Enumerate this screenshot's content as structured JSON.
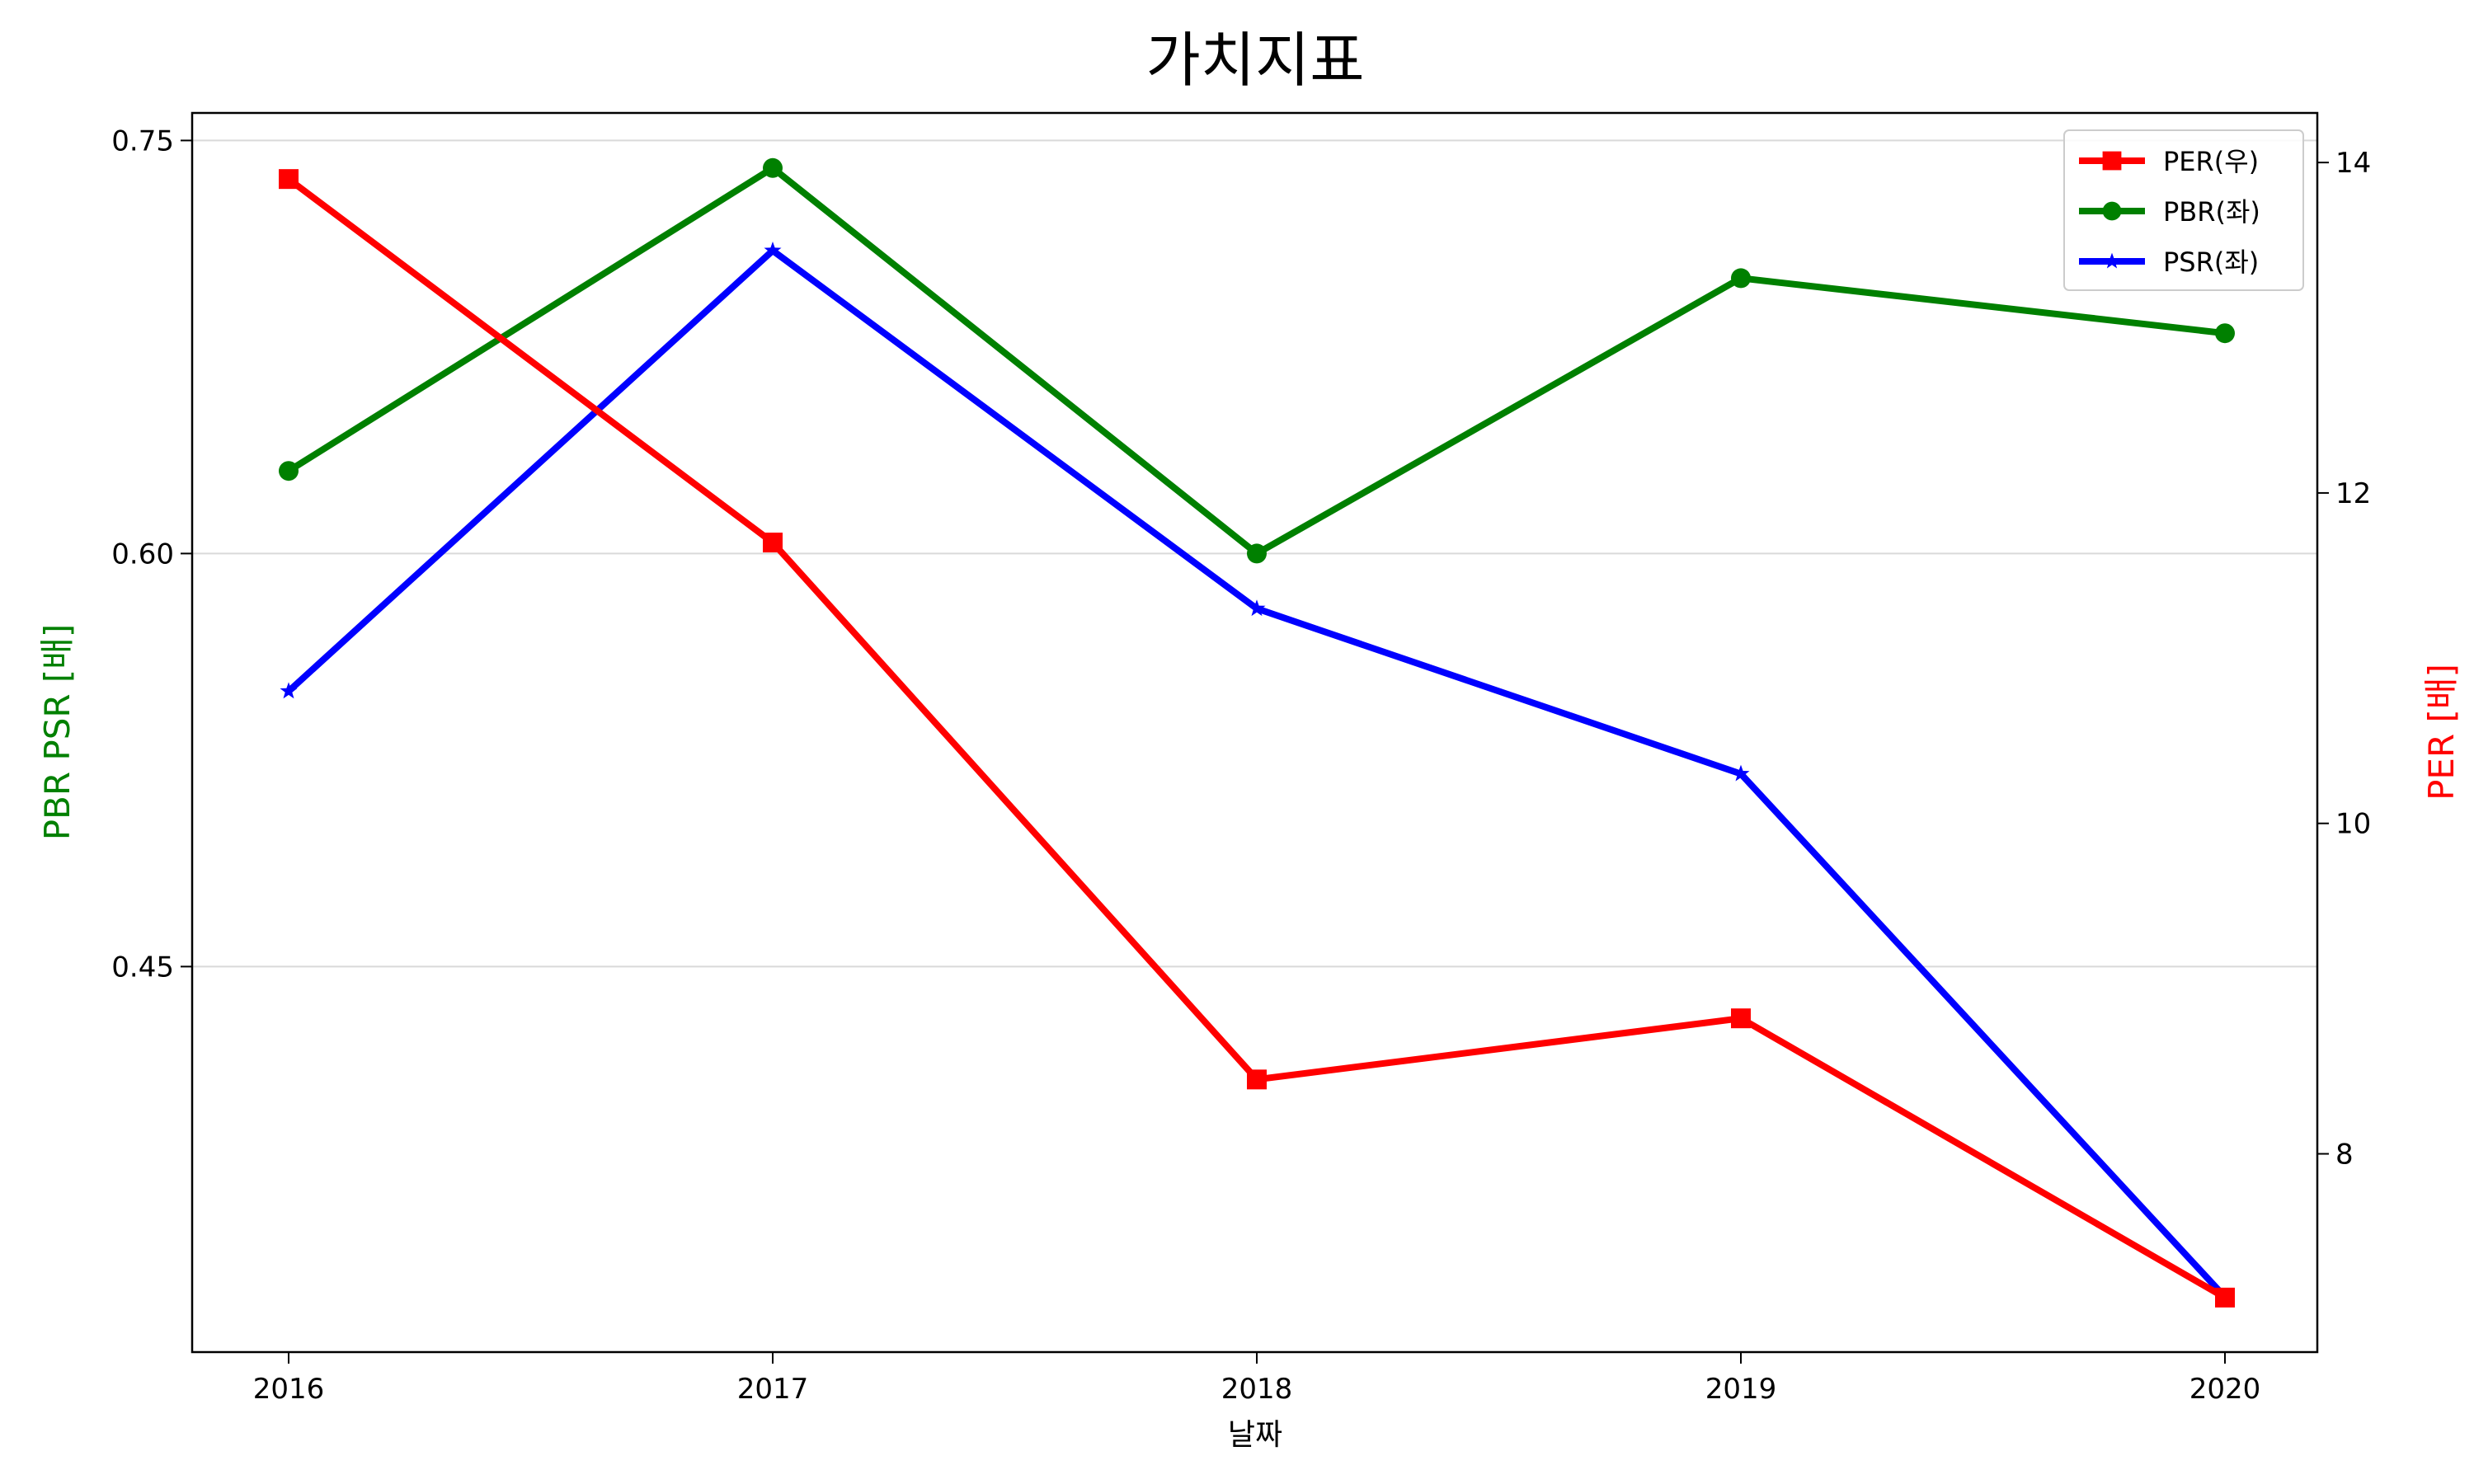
{
  "chart_data": {
    "type": "line",
    "title": "가치지표",
    "xlabel": "날짜",
    "ylabel_left": "PBR PSR [배]",
    "ylabel_right": "PER [배]",
    "categories": [
      "2016",
      "2017",
      "2018",
      "2019",
      "2020"
    ],
    "left_axis": {
      "ylim": [
        0.31,
        0.76
      ],
      "ticks": [
        0.45,
        0.6,
        0.75
      ],
      "tick_labels": [
        "0.45",
        "0.60",
        "0.75"
      ],
      "grid": true
    },
    "right_axis": {
      "ylim": [
        6.8,
        14.3
      ],
      "ticks": [
        8,
        10,
        12,
        14
      ],
      "tick_labels": [
        "8",
        "10",
        "12",
        "14"
      ]
    },
    "legend_position": "top-right",
    "series": [
      {
        "name": "PER(우)",
        "axis": "right",
        "color": "#ff0000",
        "marker": "square",
        "values": [
          13.9,
          11.7,
          8.45,
          8.82,
          7.13
        ]
      },
      {
        "name": "PBR(좌)",
        "axis": "left",
        "color": "#008000",
        "marker": "circle",
        "values": [
          0.63,
          0.74,
          0.6,
          0.7,
          0.68
        ]
      },
      {
        "name": "PSR(좌)",
        "axis": "left",
        "color": "#0000ff",
        "marker": "star",
        "values": [
          0.55,
          0.71,
          0.58,
          0.52,
          0.33
        ]
      }
    ]
  }
}
